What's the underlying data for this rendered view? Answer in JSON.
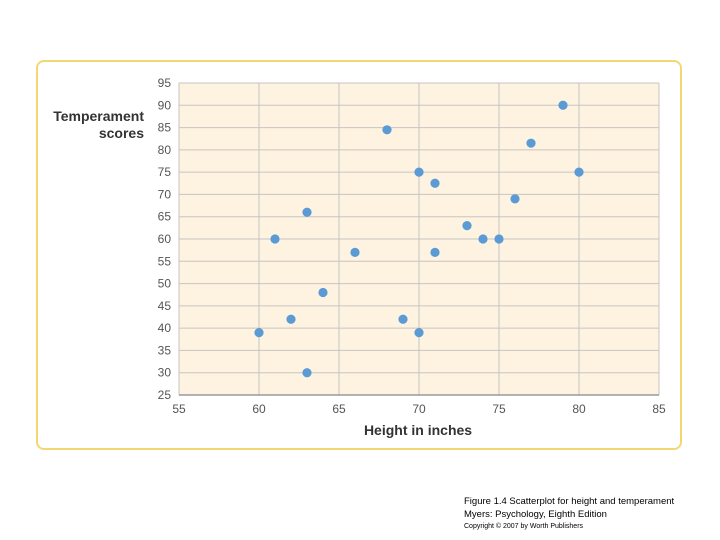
{
  "chart_data": {
    "type": "scatter",
    "title": "",
    "xlabel": "Height in inches",
    "ylabel": "Temperament scores",
    "xlim": [
      55,
      85
    ],
    "ylim": [
      25,
      95
    ],
    "xticks": [
      55,
      60,
      65,
      70,
      75,
      80,
      85
    ],
    "yticks": [
      25,
      30,
      35,
      40,
      45,
      50,
      55,
      60,
      65,
      70,
      75,
      80,
      85,
      90,
      95
    ],
    "grid": true,
    "points": [
      {
        "x": 60,
        "y": 39
      },
      {
        "x": 61,
        "y": 60
      },
      {
        "x": 62,
        "y": 42
      },
      {
        "x": 63,
        "y": 30
      },
      {
        "x": 63,
        "y": 66
      },
      {
        "x": 64,
        "y": 48
      },
      {
        "x": 66,
        "y": 57
      },
      {
        "x": 68,
        "y": 84.5
      },
      {
        "x": 69,
        "y": 42
      },
      {
        "x": 70,
        "y": 39
      },
      {
        "x": 70,
        "y": 75
      },
      {
        "x": 71,
        "y": 72.5
      },
      {
        "x": 71,
        "y": 57
      },
      {
        "x": 73,
        "y": 63
      },
      {
        "x": 74,
        "y": 60
      },
      {
        "x": 75,
        "y": 60
      },
      {
        "x": 76,
        "y": 69
      },
      {
        "x": 77,
        "y": 81.5
      },
      {
        "x": 79,
        "y": 90
      },
      {
        "x": 80,
        "y": 75
      }
    ],
    "colors": {
      "plot_background": "#fdf3e0",
      "grid": "#c8c4bf",
      "point": "#5b9bd5",
      "frame": "#f2d873"
    }
  },
  "caption": {
    "line1": "Figure 1.4  Scatterplot for height and temperament",
    "line2": "Myers: Psychology, Eighth Edition",
    "line3": "Copyright © 2007 by Worth Publishers"
  }
}
